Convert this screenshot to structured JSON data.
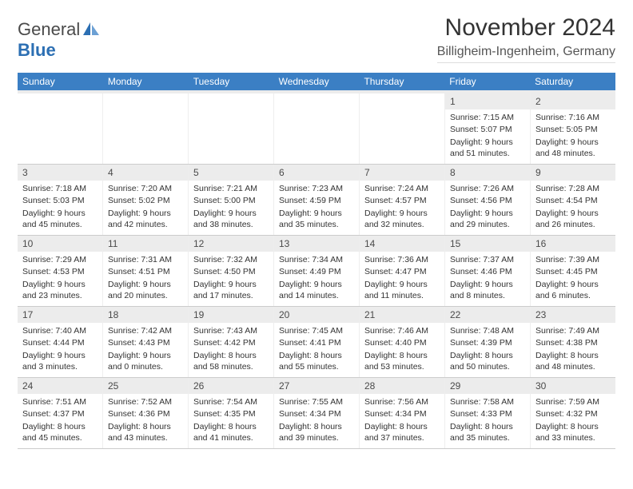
{
  "logo": {
    "text_general": "General",
    "text_blue": "Blue",
    "icon_color": "#2c6fb3"
  },
  "title": "November 2024",
  "location": "Billigheim-Ingenheim, Germany",
  "header_color": "#3b7fc4",
  "weekdays": [
    "Sunday",
    "Monday",
    "Tuesday",
    "Wednesday",
    "Thursday",
    "Friday",
    "Saturday"
  ],
  "weeks": [
    [
      {
        "day": "",
        "sunrise": "",
        "sunset": "",
        "daylight": ""
      },
      {
        "day": "",
        "sunrise": "",
        "sunset": "",
        "daylight": ""
      },
      {
        "day": "",
        "sunrise": "",
        "sunset": "",
        "daylight": ""
      },
      {
        "day": "",
        "sunrise": "",
        "sunset": "",
        "daylight": ""
      },
      {
        "day": "",
        "sunrise": "",
        "sunset": "",
        "daylight": ""
      },
      {
        "day": "1",
        "sunrise": "Sunrise: 7:15 AM",
        "sunset": "Sunset: 5:07 PM",
        "daylight": "Daylight: 9 hours and 51 minutes."
      },
      {
        "day": "2",
        "sunrise": "Sunrise: 7:16 AM",
        "sunset": "Sunset: 5:05 PM",
        "daylight": "Daylight: 9 hours and 48 minutes."
      }
    ],
    [
      {
        "day": "3",
        "sunrise": "Sunrise: 7:18 AM",
        "sunset": "Sunset: 5:03 PM",
        "daylight": "Daylight: 9 hours and 45 minutes."
      },
      {
        "day": "4",
        "sunrise": "Sunrise: 7:20 AM",
        "sunset": "Sunset: 5:02 PM",
        "daylight": "Daylight: 9 hours and 42 minutes."
      },
      {
        "day": "5",
        "sunrise": "Sunrise: 7:21 AM",
        "sunset": "Sunset: 5:00 PM",
        "daylight": "Daylight: 9 hours and 38 minutes."
      },
      {
        "day": "6",
        "sunrise": "Sunrise: 7:23 AM",
        "sunset": "Sunset: 4:59 PM",
        "daylight": "Daylight: 9 hours and 35 minutes."
      },
      {
        "day": "7",
        "sunrise": "Sunrise: 7:24 AM",
        "sunset": "Sunset: 4:57 PM",
        "daylight": "Daylight: 9 hours and 32 minutes."
      },
      {
        "day": "8",
        "sunrise": "Sunrise: 7:26 AM",
        "sunset": "Sunset: 4:56 PM",
        "daylight": "Daylight: 9 hours and 29 minutes."
      },
      {
        "day": "9",
        "sunrise": "Sunrise: 7:28 AM",
        "sunset": "Sunset: 4:54 PM",
        "daylight": "Daylight: 9 hours and 26 minutes."
      }
    ],
    [
      {
        "day": "10",
        "sunrise": "Sunrise: 7:29 AM",
        "sunset": "Sunset: 4:53 PM",
        "daylight": "Daylight: 9 hours and 23 minutes."
      },
      {
        "day": "11",
        "sunrise": "Sunrise: 7:31 AM",
        "sunset": "Sunset: 4:51 PM",
        "daylight": "Daylight: 9 hours and 20 minutes."
      },
      {
        "day": "12",
        "sunrise": "Sunrise: 7:32 AM",
        "sunset": "Sunset: 4:50 PM",
        "daylight": "Daylight: 9 hours and 17 minutes."
      },
      {
        "day": "13",
        "sunrise": "Sunrise: 7:34 AM",
        "sunset": "Sunset: 4:49 PM",
        "daylight": "Daylight: 9 hours and 14 minutes."
      },
      {
        "day": "14",
        "sunrise": "Sunrise: 7:36 AM",
        "sunset": "Sunset: 4:47 PM",
        "daylight": "Daylight: 9 hours and 11 minutes."
      },
      {
        "day": "15",
        "sunrise": "Sunrise: 7:37 AM",
        "sunset": "Sunset: 4:46 PM",
        "daylight": "Daylight: 9 hours and 8 minutes."
      },
      {
        "day": "16",
        "sunrise": "Sunrise: 7:39 AM",
        "sunset": "Sunset: 4:45 PM",
        "daylight": "Daylight: 9 hours and 6 minutes."
      }
    ],
    [
      {
        "day": "17",
        "sunrise": "Sunrise: 7:40 AM",
        "sunset": "Sunset: 4:44 PM",
        "daylight": "Daylight: 9 hours and 3 minutes."
      },
      {
        "day": "18",
        "sunrise": "Sunrise: 7:42 AM",
        "sunset": "Sunset: 4:43 PM",
        "daylight": "Daylight: 9 hours and 0 minutes."
      },
      {
        "day": "19",
        "sunrise": "Sunrise: 7:43 AM",
        "sunset": "Sunset: 4:42 PM",
        "daylight": "Daylight: 8 hours and 58 minutes."
      },
      {
        "day": "20",
        "sunrise": "Sunrise: 7:45 AM",
        "sunset": "Sunset: 4:41 PM",
        "daylight": "Daylight: 8 hours and 55 minutes."
      },
      {
        "day": "21",
        "sunrise": "Sunrise: 7:46 AM",
        "sunset": "Sunset: 4:40 PM",
        "daylight": "Daylight: 8 hours and 53 minutes."
      },
      {
        "day": "22",
        "sunrise": "Sunrise: 7:48 AM",
        "sunset": "Sunset: 4:39 PM",
        "daylight": "Daylight: 8 hours and 50 minutes."
      },
      {
        "day": "23",
        "sunrise": "Sunrise: 7:49 AM",
        "sunset": "Sunset: 4:38 PM",
        "daylight": "Daylight: 8 hours and 48 minutes."
      }
    ],
    [
      {
        "day": "24",
        "sunrise": "Sunrise: 7:51 AM",
        "sunset": "Sunset: 4:37 PM",
        "daylight": "Daylight: 8 hours and 45 minutes."
      },
      {
        "day": "25",
        "sunrise": "Sunrise: 7:52 AM",
        "sunset": "Sunset: 4:36 PM",
        "daylight": "Daylight: 8 hours and 43 minutes."
      },
      {
        "day": "26",
        "sunrise": "Sunrise: 7:54 AM",
        "sunset": "Sunset: 4:35 PM",
        "daylight": "Daylight: 8 hours and 41 minutes."
      },
      {
        "day": "27",
        "sunrise": "Sunrise: 7:55 AM",
        "sunset": "Sunset: 4:34 PM",
        "daylight": "Daylight: 8 hours and 39 minutes."
      },
      {
        "day": "28",
        "sunrise": "Sunrise: 7:56 AM",
        "sunset": "Sunset: 4:34 PM",
        "daylight": "Daylight: 8 hours and 37 minutes."
      },
      {
        "day": "29",
        "sunrise": "Sunrise: 7:58 AM",
        "sunset": "Sunset: 4:33 PM",
        "daylight": "Daylight: 8 hours and 35 minutes."
      },
      {
        "day": "30",
        "sunrise": "Sunrise: 7:59 AM",
        "sunset": "Sunset: 4:32 PM",
        "daylight": "Daylight: 8 hours and 33 minutes."
      }
    ]
  ]
}
